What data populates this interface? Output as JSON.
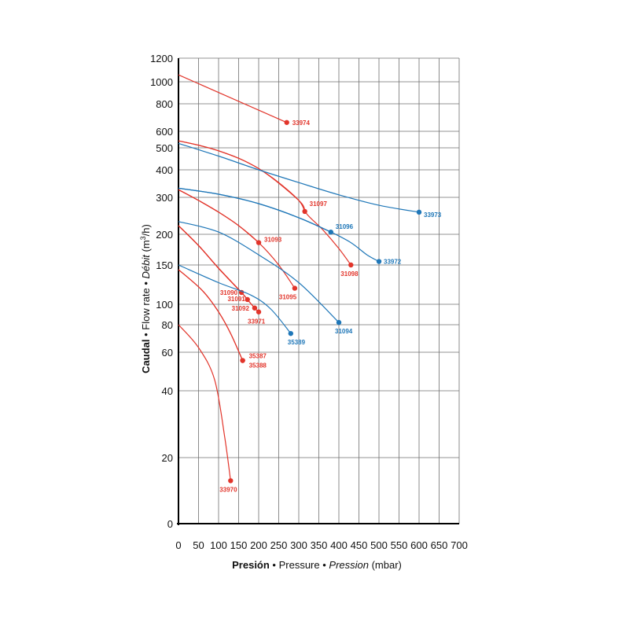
{
  "chart_data": {
    "type": "line",
    "xlabel": {
      "part1": "Presión",
      "sep1": " • ",
      "part2": "Pressure",
      "sep2": " • ",
      "part3": "Pression",
      "part4": " (mbar)"
    },
    "ylabel": {
      "part1": "Caudal",
      "sep1": " • ",
      "part2": "Flow rate",
      "sep2": " • ",
      "part3": "Débit",
      "part4": " (m",
      "sup": "3",
      "part5": "/h)"
    },
    "xlim": [
      0,
      700
    ],
    "x_ticks": [
      0,
      50,
      100,
      150,
      200,
      250,
      300,
      350,
      400,
      450,
      500,
      550,
      600,
      650,
      700
    ],
    "y_scale": "log",
    "y_ticks": [
      0,
      20,
      40,
      60,
      80,
      100,
      150,
      200,
      300,
      400,
      500,
      600,
      800,
      1000,
      1200
    ],
    "grid": true,
    "colors": {
      "red": "#e2352b",
      "blue": "#1f77b8"
    },
    "series": [
      {
        "name": "33974",
        "color": "red",
        "points": [
          [
            0,
            1055
          ],
          [
            270,
            658
          ]
        ]
      },
      {
        "name": "31097",
        "color": "red",
        "points": [
          [
            0,
            540
          ],
          [
            50,
            515
          ],
          [
            100,
            485
          ],
          [
            150,
            450
          ],
          [
            200,
            405
          ],
          [
            250,
            350
          ],
          [
            300,
            290
          ],
          [
            315,
            257
          ]
        ],
        "end": [
          315,
          257
        ]
      },
      {
        "name": "31098",
        "color": "red",
        "points": [
          [
            0,
            540
          ],
          [
            100,
            485
          ],
          [
            200,
            405
          ],
          [
            300,
            290
          ],
          [
            320,
            250
          ],
          [
            360,
            210
          ],
          [
            400,
            175
          ],
          [
            430,
            150
          ]
        ]
      },
      {
        "name": "33973",
        "color": "blue",
        "points": [
          [
            0,
            525
          ],
          [
            100,
            460
          ],
          [
            200,
            400
          ],
          [
            300,
            350
          ],
          [
            400,
            308
          ],
          [
            500,
            275
          ],
          [
            600,
            255
          ]
        ]
      },
      {
        "name": "31096",
        "color": "blue",
        "points": [
          [
            0,
            330
          ],
          [
            100,
            310
          ],
          [
            200,
            280
          ],
          [
            300,
            240
          ],
          [
            380,
            205
          ]
        ]
      },
      {
        "name": "33972",
        "color": "blue",
        "points": [
          [
            0,
            330
          ],
          [
            100,
            310
          ],
          [
            200,
            280
          ],
          [
            300,
            240
          ],
          [
            380,
            205
          ],
          [
            430,
            185
          ],
          [
            470,
            165
          ],
          [
            500,
            155
          ]
        ]
      },
      {
        "name": "31093",
        "color": "red",
        "points": [
          [
            0,
            325
          ],
          [
            50,
            290
          ],
          [
            100,
            255
          ],
          [
            150,
            220
          ],
          [
            200,
            185
          ]
        ],
        "end": [
          200,
          185
        ]
      },
      {
        "name": "31095",
        "color": "red",
        "points": [
          [
            0,
            325
          ],
          [
            50,
            290
          ],
          [
            100,
            255
          ],
          [
            150,
            220
          ],
          [
            200,
            185
          ],
          [
            250,
            150
          ],
          [
            290,
            118
          ]
        ]
      },
      {
        "name": "31094",
        "color": "blue",
        "points": [
          [
            0,
            230
          ],
          [
            100,
            205
          ],
          [
            200,
            165
          ],
          [
            300,
            125
          ],
          [
            400,
            82
          ]
        ]
      },
      {
        "name": "31090",
        "color": "red",
        "points": [
          [
            0,
            220
          ],
          [
            50,
            180
          ],
          [
            100,
            145
          ],
          [
            157,
            113
          ]
        ]
      },
      {
        "name": "31091",
        "color": "red",
        "points": [
          [
            0,
            220
          ],
          [
            50,
            180
          ],
          [
            100,
            145
          ],
          [
            157,
            113
          ],
          [
            172,
            105
          ]
        ]
      },
      {
        "name": "31092",
        "color": "red",
        "points": [
          [
            0,
            220
          ],
          [
            50,
            180
          ],
          [
            100,
            145
          ],
          [
            157,
            113
          ],
          [
            172,
            105
          ],
          [
            190,
            96
          ]
        ]
      },
      {
        "name": "33971",
        "color": "red",
        "points": [
          [
            0,
            220
          ],
          [
            50,
            180
          ],
          [
            100,
            145
          ],
          [
            157,
            113
          ],
          [
            172,
            105
          ],
          [
            190,
            96
          ],
          [
            200,
            92
          ]
        ]
      },
      {
        "name": "35389",
        "color": "blue",
        "points": [
          [
            0,
            150
          ],
          [
            100,
            125
          ],
          [
            180,
            110
          ],
          [
            230,
            95
          ],
          [
            280,
            73
          ]
        ]
      },
      {
        "name": "35387",
        "color": "red",
        "points": [
          [
            0,
            143
          ],
          [
            60,
            115
          ],
          [
            100,
            92
          ],
          [
            130,
            73
          ],
          [
            160,
            55
          ]
        ]
      },
      {
        "name": "35388",
        "color": "red",
        "points": [
          [
            0,
            143
          ],
          [
            60,
            115
          ],
          [
            100,
            92
          ],
          [
            130,
            73
          ],
          [
            160,
            55
          ]
        ]
      },
      {
        "name": "33970",
        "color": "red",
        "points": [
          [
            0,
            80
          ],
          [
            50,
            63
          ],
          [
            90,
            45
          ],
          [
            115,
            25
          ],
          [
            130,
            13
          ]
        ]
      }
    ],
    "labels": [
      {
        "text": "33974",
        "color": "red",
        "at": [
          270,
          658
        ]
      },
      {
        "text": "31097",
        "color": "red",
        "at": [
          315,
          257
        ]
      },
      {
        "text": "31098",
        "color": "red",
        "at": [
          430,
          150
        ]
      },
      {
        "text": "33973",
        "color": "blue",
        "at": [
          600,
          255
        ]
      },
      {
        "text": "31096",
        "color": "blue",
        "at": [
          380,
          205
        ]
      },
      {
        "text": "33972",
        "color": "blue",
        "at": [
          500,
          155
        ]
      },
      {
        "text": "31093",
        "color": "red",
        "at": [
          200,
          185
        ]
      },
      {
        "text": "31095",
        "color": "red",
        "at": [
          290,
          118
        ]
      },
      {
        "text": "31094",
        "color": "blue",
        "at": [
          400,
          82
        ]
      },
      {
        "text": "31090",
        "color": "red",
        "at": [
          157,
          113
        ]
      },
      {
        "text": "31091",
        "color": "red",
        "at": [
          172,
          105
        ]
      },
      {
        "text": "31092",
        "color": "red",
        "at": [
          190,
          96
        ]
      },
      {
        "text": "33971",
        "color": "red",
        "at": [
          200,
          92
        ]
      },
      {
        "text": "35389",
        "color": "blue",
        "at": [
          280,
          73
        ]
      },
      {
        "text": "35387",
        "color": "red",
        "at": [
          160,
          55
        ]
      },
      {
        "text": "35388",
        "color": "red",
        "at": [
          160,
          55
        ]
      },
      {
        "text": "33970",
        "color": "red",
        "at": [
          130,
          13
        ]
      }
    ]
  }
}
